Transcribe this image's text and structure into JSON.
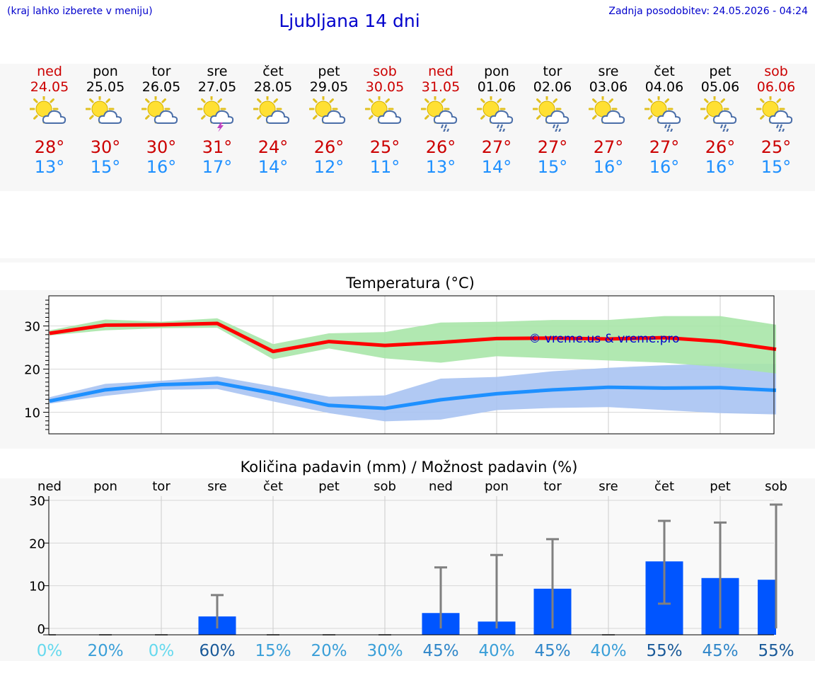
{
  "header": {
    "menu_hint": "(kraj lahko izberete v meniju)",
    "title": "Ljubljana 14 dni",
    "last_update": "Zadnja posodobitev: 24.05.2026 - 04:24"
  },
  "days": [
    {
      "name": "ned",
      "date": "24.05",
      "weekend": true,
      "icon": "sun-cloud-icon",
      "max": "28°",
      "min": "13°"
    },
    {
      "name": "pon",
      "date": "25.05",
      "weekend": false,
      "icon": "sun-cloud-icon",
      "max": "30°",
      "min": "15°"
    },
    {
      "name": "tor",
      "date": "26.05",
      "weekend": false,
      "icon": "sun-cloud-icon",
      "max": "30°",
      "min": "16°"
    },
    {
      "name": "sre",
      "date": "27.05",
      "weekend": false,
      "icon": "sun-cloud-thunder-icon",
      "max": "31°",
      "min": "17°"
    },
    {
      "name": "čet",
      "date": "28.05",
      "weekend": false,
      "icon": "sun-cloud-icon",
      "max": "24°",
      "min": "14°"
    },
    {
      "name": "pet",
      "date": "29.05",
      "weekend": false,
      "icon": "sun-cloud-icon",
      "max": "26°",
      "min": "12°"
    },
    {
      "name": "sob",
      "date": "30.05",
      "weekend": true,
      "icon": "sun-cloud-icon",
      "max": "25°",
      "min": "11°"
    },
    {
      "name": "ned",
      "date": "31.05",
      "weekend": true,
      "icon": "sun-cloud-rain-icon",
      "max": "26°",
      "min": "13°"
    },
    {
      "name": "pon",
      "date": "01.06",
      "weekend": false,
      "icon": "sun-cloud-rain-icon",
      "max": "27°",
      "min": "14°"
    },
    {
      "name": "tor",
      "date": "02.06",
      "weekend": false,
      "icon": "sun-cloud-rain-icon",
      "max": "27°",
      "min": "15°"
    },
    {
      "name": "sre",
      "date": "03.06",
      "weekend": false,
      "icon": "sun-cloud-icon",
      "max": "27°",
      "min": "16°"
    },
    {
      "name": "čet",
      "date": "04.06",
      "weekend": false,
      "icon": "sun-cloud-rain-icon",
      "max": "27°",
      "min": "16°"
    },
    {
      "name": "pet",
      "date": "05.06",
      "weekend": false,
      "icon": "sun-cloud-rain-icon",
      "max": "26°",
      "min": "16°"
    },
    {
      "name": "sob",
      "date": "06.06",
      "weekend": true,
      "icon": "sun-cloud-rain-icon",
      "max": "25°",
      "min": "15°"
    }
  ],
  "colors": {
    "max_line": "#ff0000",
    "max_band": "#a8e6a8",
    "min_line": "#1e90ff",
    "min_band": "#a9c3f2",
    "bar": "#0055ff",
    "whisker": "#808080",
    "weekend_text": "#cc0000",
    "watermark": "#0000cc"
  },
  "chart_data": [
    {
      "type": "line",
      "title": "Temperatura (°C)",
      "watermark": "© vreme.us & vreme.pro",
      "x": [
        0,
        1,
        2,
        3,
        4,
        5,
        6,
        7,
        8,
        9,
        10,
        11,
        12,
        13
      ],
      "ylim": [
        5,
        37
      ],
      "yticks": [
        10,
        20,
        30
      ],
      "grid": true,
      "series": [
        {
          "key": "max",
          "values": [
            28.3,
            30.2,
            30.3,
            30.6,
            24.1,
            26.4,
            25.5,
            26.2,
            27.1,
            27.2,
            27.0,
            27.3,
            26.4,
            24.6
          ],
          "band_low": [
            27.8,
            29.0,
            29.5,
            29.6,
            22.3,
            24.8,
            22.5,
            21.5,
            23.0,
            22.5,
            22.0,
            21.5,
            20.5,
            19.0
          ],
          "band_high": [
            29.0,
            31.5,
            31.0,
            31.8,
            25.8,
            28.3,
            28.6,
            30.8,
            31.0,
            31.4,
            31.4,
            32.3,
            32.3,
            30.3
          ]
        },
        {
          "key": "min",
          "values": [
            12.6,
            15.2,
            16.4,
            16.8,
            14.4,
            11.6,
            10.9,
            12.9,
            14.3,
            15.2,
            15.8,
            15.6,
            15.7,
            15.1
          ],
          "band_low": [
            12.0,
            13.8,
            15.2,
            15.4,
            12.5,
            9.8,
            7.9,
            8.3,
            10.5,
            11.0,
            11.2,
            10.5,
            9.8,
            9.5
          ],
          "band_high": [
            13.5,
            16.6,
            17.3,
            18.3,
            16.0,
            13.6,
            13.9,
            17.8,
            18.2,
            19.5,
            20.3,
            20.9,
            21.3,
            21.2
          ]
        }
      ]
    },
    {
      "type": "bar",
      "title": "Količina padavin (mm) / Možnost padavin (%)",
      "categories": [
        "ned",
        "pon",
        "tor",
        "sre",
        "čet",
        "pet",
        "sob",
        "ned",
        "pon",
        "tor",
        "sre",
        "čet",
        "pet",
        "sob"
      ],
      "values": [
        0,
        0,
        0,
        2.8,
        0,
        0,
        0,
        3.6,
        1.6,
        9.3,
        0,
        15.7,
        11.8,
        11.4
      ],
      "whisker_high": [
        0,
        0,
        0,
        7.8,
        0,
        0,
        0,
        14.3,
        17.2,
        20.9,
        0,
        25.2,
        24.8,
        29.0
      ],
      "whisker_low": [
        0,
        0,
        0,
        0,
        0,
        0,
        0,
        0,
        0,
        0,
        0,
        5.8,
        0,
        0
      ],
      "probability": [
        "0%",
        "20%",
        "0%",
        "60%",
        "15%",
        "20%",
        "30%",
        "45%",
        "40%",
        "45%",
        "40%",
        "55%",
        "45%",
        "55%"
      ],
      "probability_colors": [
        "#66d9ee",
        "#3a9fd8",
        "#66d9ee",
        "#1a5a99",
        "#3a9fd8",
        "#3a9fd8",
        "#3a9fd8",
        "#2f86c9",
        "#3a9fd8",
        "#2f86c9",
        "#3a9fd8",
        "#1a5a99",
        "#2f86c9",
        "#1a5a99"
      ],
      "ylim": [
        -1.5,
        31
      ],
      "yticks": [
        0,
        10,
        20,
        30
      ],
      "grid": true
    }
  ]
}
